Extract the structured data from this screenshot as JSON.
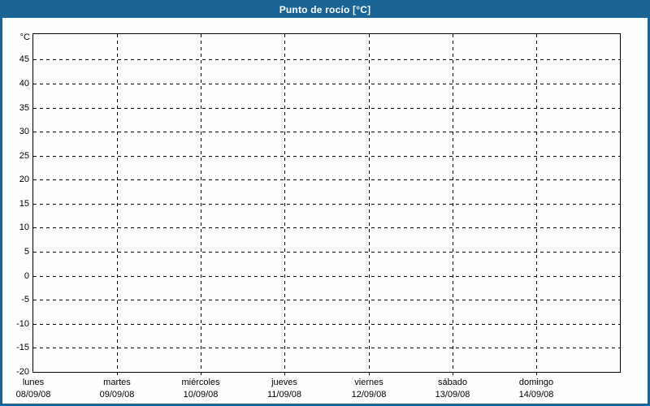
{
  "title_bar": {
    "title": "Punto de rocío [°C]"
  },
  "colors": {
    "accent_blue": "#1a6496",
    "title_text": "#ffffff",
    "chart_background": "#fdfffd",
    "grid_and_text": "#000000"
  },
  "y_axis": {
    "unit_label": "°C",
    "tick_values": [
      45,
      40,
      35,
      30,
      25,
      20,
      15,
      10,
      5,
      0,
      -5,
      -10,
      -15,
      -20
    ],
    "min": -20,
    "max": 50.3
  },
  "x_axis": {
    "days": [
      {
        "name": "lunes",
        "date": "08/09/08"
      },
      {
        "name": "martes",
        "date": "09/09/08"
      },
      {
        "name": "miércoles",
        "date": "10/09/08"
      },
      {
        "name": "jueves",
        "date": "11/09/08"
      },
      {
        "name": "viernes",
        "date": "12/09/08"
      },
      {
        "name": "sábado",
        "date": "13/09/08"
      },
      {
        "name": "domingo",
        "date": "14/09/08"
      }
    ],
    "days_per_axis": 7
  },
  "chart_data": {
    "type": "line",
    "title": "Punto de rocío [°C]",
    "xlabel": "",
    "ylabel": "°C",
    "ylim": [
      -20,
      50.3
    ],
    "yticks": [
      45,
      40,
      35,
      30,
      25,
      20,
      15,
      10,
      5,
      0,
      -5,
      -10,
      -15,
      -20
    ],
    "x_categories": [
      "lunes 08/09/08",
      "martes 09/09/08",
      "miércoles 10/09/08",
      "jueves 11/09/08",
      "viernes 12/09/08",
      "sábado 13/09/08",
      "domingo 14/09/08"
    ],
    "series": [],
    "grid": true,
    "grid_style": "dashed",
    "legend_position": "none"
  }
}
